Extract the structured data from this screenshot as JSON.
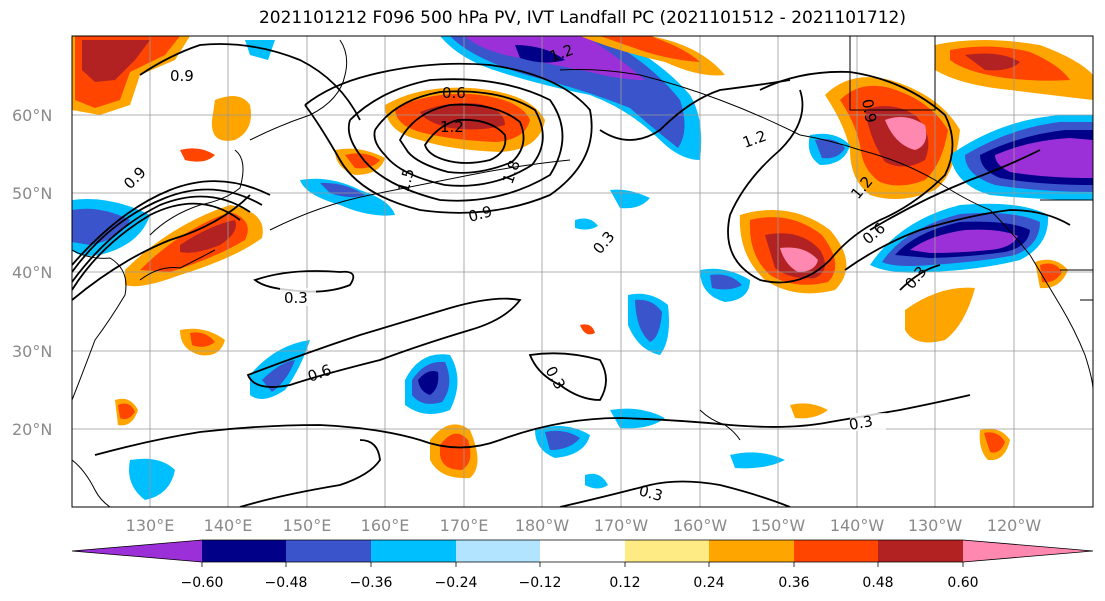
{
  "title": "2021101212 F096 500 hPa PV, IVT Landfall PC (2021101512 - 2021101712)",
  "latitude_labels": [
    "60°N",
    "50°N",
    "40°N",
    "30°N",
    "20°N"
  ],
  "longitude_labels": [
    "130°E",
    "140°E",
    "150°E",
    "160°E",
    "170°E",
    "180°W",
    "170°W",
    "160°W",
    "150°W",
    "140°W",
    "130°W",
    "120°W"
  ],
  "contour_labels": [
    "0.9",
    "1.2",
    "0.6",
    "1.2",
    "1.5",
    "1.8",
    "0.9",
    "0.3",
    "0.9",
    "1.2",
    "0.9",
    "1.2",
    "0.6",
    "0.3",
    "0.3",
    "0.6",
    "0.3",
    "0.3",
    "0.3"
  ],
  "colorbar": {
    "tick_labels": [
      "−0.60",
      "−0.48",
      "−0.36",
      "−0.24",
      "−0.12",
      "0.12",
      "0.24",
      "0.36",
      "0.48",
      "0.60"
    ],
    "colors": [
      "#9b30d8",
      "#000089",
      "#3a54cc",
      "#00bfff",
      "#b2e4ff",
      "#ffffff",
      "#ffeb83",
      "#ffa500",
      "#ff4500",
      "#b22222",
      "#ff88b0"
    ]
  }
}
